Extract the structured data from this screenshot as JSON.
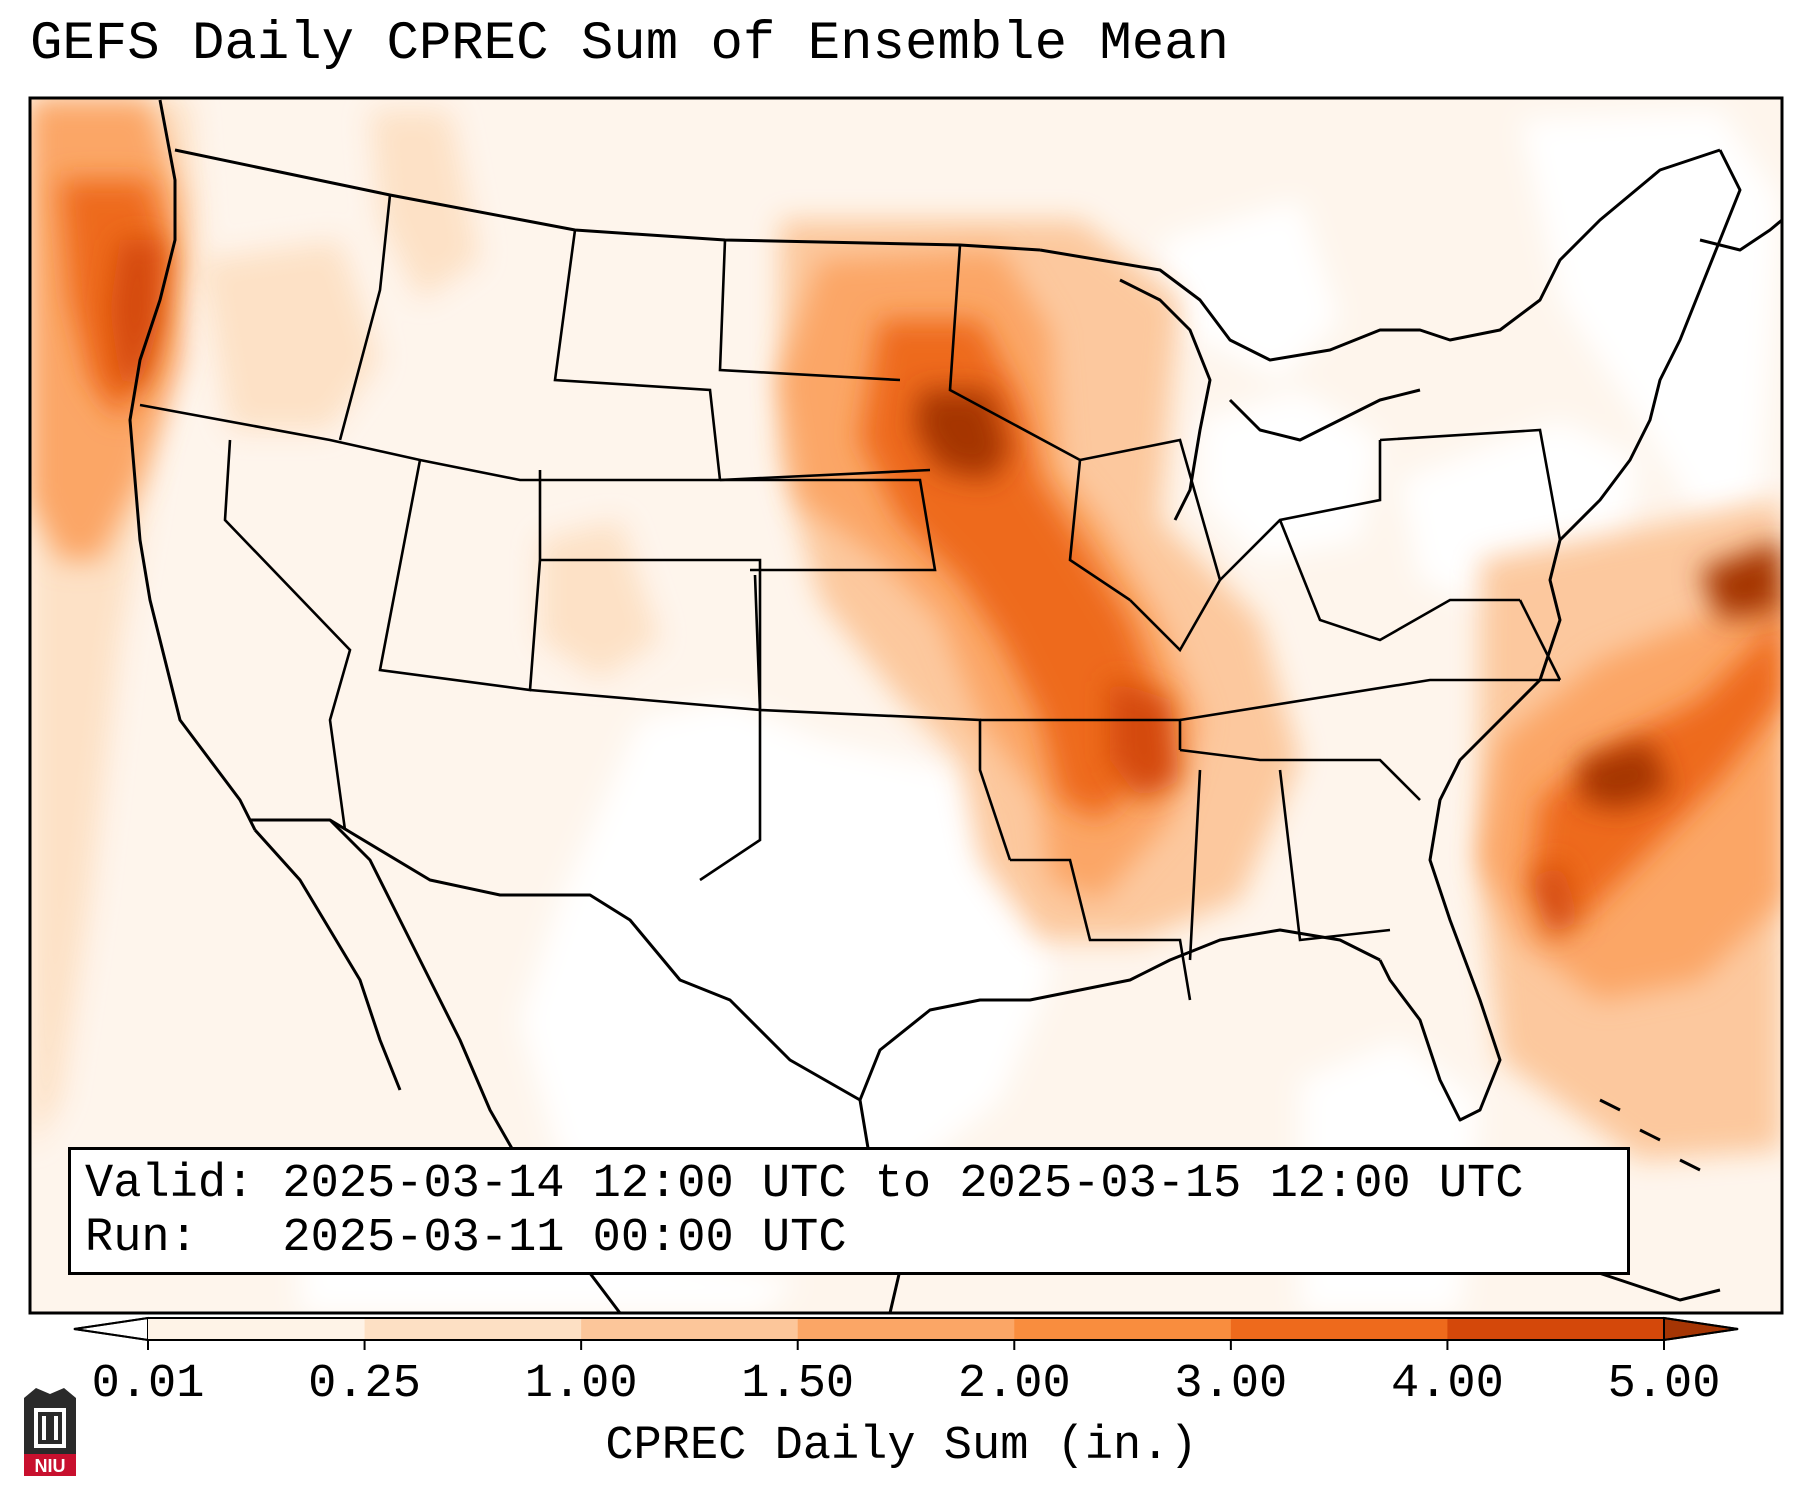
{
  "title": "GEFS Daily CPREC Sum of Ensemble Mean",
  "info": {
    "valid_line": "Valid: 2025-03-14 12:00 UTC to 2025-03-15 12:00 UTC",
    "run_line": "Run:   2025-03-11 00:00 UTC"
  },
  "colorbar": {
    "label": "CPREC Daily Sum (in.)",
    "ticks": [
      "0.01",
      "0.25",
      "1.00",
      "1.50",
      "2.00",
      "3.00",
      "4.00",
      "5.00"
    ],
    "colors": [
      "#fef3e7",
      "#fde0c4",
      "#fcc69a",
      "#fba666",
      "#f98d3e",
      "#ee6a1c",
      "#d4480a",
      "#a53504"
    ],
    "extend": "both"
  },
  "logo": {
    "text": "NIU",
    "color": "#c8102e"
  }
}
